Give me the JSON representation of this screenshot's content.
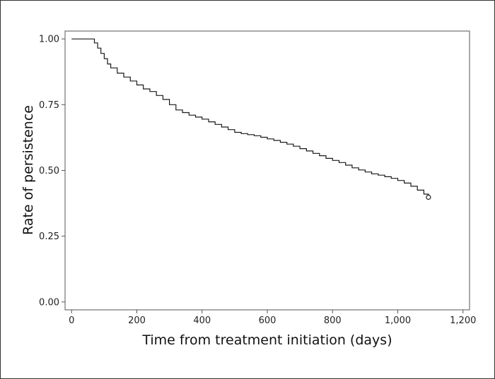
{
  "chart_data": {
    "type": "line",
    "xlabel": "Time from treatment initiation (days)",
    "ylabel": "Rate of persistence",
    "xlim": [
      -20,
      1220
    ],
    "ylim": [
      -0.03,
      1.03
    ],
    "x_ticks": [
      0,
      200,
      400,
      600,
      800,
      1000,
      1200
    ],
    "x_tick_labels": [
      "0",
      "200",
      "400",
      "600",
      "800",
      "1,000",
      "1,200"
    ],
    "y_ticks": [
      0.0,
      0.25,
      0.5,
      0.75,
      1.0
    ],
    "y_tick_labels": [
      "0.00",
      "0.25",
      "0.50",
      "0.75",
      "1.00"
    ],
    "grid": false,
    "legend": "none",
    "line_color": "#1a1a1a",
    "series": [
      {
        "x": [
          0,
          60,
          70,
          80,
          90,
          100,
          110,
          120,
          140,
          160,
          180,
          200,
          220,
          240,
          260,
          280,
          300,
          320,
          340,
          360,
          380,
          400,
          420,
          440,
          460,
          480,
          500,
          520,
          540,
          560,
          580,
          600,
          620,
          640,
          660,
          680,
          700,
          720,
          740,
          760,
          780,
          800,
          820,
          840,
          860,
          880,
          900,
          920,
          940,
          960,
          980,
          1000,
          1020,
          1040,
          1060,
          1080,
          1094
        ],
        "y": [
          1.0,
          1.0,
          0.985,
          0.965,
          0.945,
          0.925,
          0.905,
          0.89,
          0.87,
          0.855,
          0.84,
          0.825,
          0.81,
          0.8,
          0.785,
          0.77,
          0.75,
          0.73,
          0.72,
          0.71,
          0.703,
          0.695,
          0.685,
          0.675,
          0.665,
          0.655,
          0.645,
          0.64,
          0.636,
          0.632,
          0.626,
          0.62,
          0.614,
          0.607,
          0.6,
          0.592,
          0.583,
          0.574,
          0.565,
          0.556,
          0.546,
          0.538,
          0.53,
          0.52,
          0.51,
          0.502,
          0.494,
          0.487,
          0.482,
          0.476,
          0.47,
          0.462,
          0.452,
          0.44,
          0.425,
          0.41,
          0.398
        ]
      }
    ],
    "censor_marker": {
      "x": 1094,
      "y": 0.398
    }
  }
}
